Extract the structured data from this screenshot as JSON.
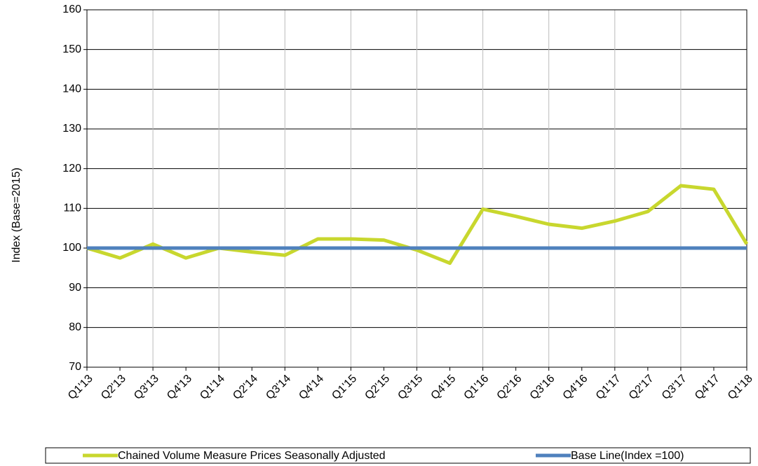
{
  "chart_data": {
    "type": "line",
    "y_label": "Index (Base=2015)",
    "categories": [
      "Q1'13",
      "Q2'13",
      "Q3'13",
      "Q4'13",
      "Q1'14",
      "Q2'14",
      "Q3'14",
      "Q4'14",
      "Q1'15",
      "Q2'15",
      "Q3'15",
      "Q4'15",
      "Q1'16",
      "Q2'16",
      "Q3'16",
      "Q4'16",
      "Q1'17",
      "Q2'17",
      "Q3'17",
      "Q4'17",
      "Q1'18"
    ],
    "series": [
      {
        "name": "Chained Volume Measure Prices Seasonally Adjusted",
        "color": "#c8d72e",
        "values": [
          100,
          97.5,
          101,
          97.5,
          100,
          99,
          98.2,
          102.3,
          102.3,
          102,
          99.5,
          96.2,
          109.8,
          108,
          106,
          105,
          106.8,
          109.2,
          115.7,
          114.8,
          101
        ]
      },
      {
        "name": "Base Line(Index =100)",
        "color": "#4f81bd",
        "values": [
          100,
          100,
          100,
          100,
          100,
          100,
          100,
          100,
          100,
          100,
          100,
          100,
          100,
          100,
          100,
          100,
          100,
          100,
          100,
          100,
          100
        ]
      }
    ],
    "ylim": [
      70,
      160
    ],
    "yticks": [
      70,
      80,
      90,
      100,
      110,
      120,
      130,
      140,
      150,
      160
    ],
    "grid": true,
    "legend": "bottom"
  }
}
